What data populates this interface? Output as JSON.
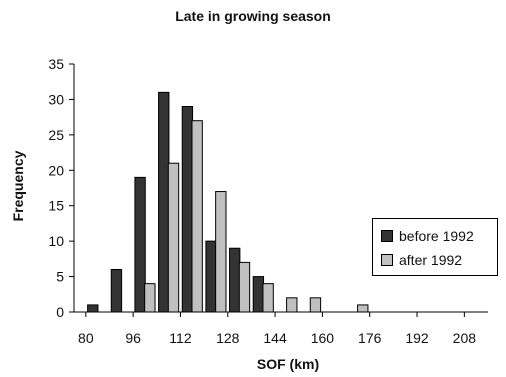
{
  "chart_data": {
    "type": "bar",
    "title": "Late in growing season",
    "xlabel": "SOF (km)",
    "ylabel": "Frequency",
    "xlim": [
      76,
      216
    ],
    "ylim": [
      0,
      35
    ],
    "xticks": [
      80,
      96,
      112,
      128,
      144,
      160,
      176,
      192,
      208
    ],
    "yticks": [
      0,
      5,
      10,
      15,
      20,
      25,
      30,
      35
    ],
    "bin_width": 8,
    "bins": [
      84,
      92,
      100,
      108,
      116,
      124,
      132,
      140,
      148,
      156,
      164,
      172,
      180,
      188,
      196,
      204,
      212
    ],
    "series": [
      {
        "name": "before 1992",
        "color": "#333333",
        "values": [
          1,
          6,
          19,
          31,
          29,
          10,
          9,
          5,
          0,
          0,
          0,
          0,
          0,
          0,
          0,
          0,
          0
        ]
      },
      {
        "name": "after 1992",
        "color": "#c0c0c0",
        "values": [
          0,
          0,
          4,
          21,
          27,
          17,
          7,
          4,
          2,
          2,
          0,
          1,
          0,
          0,
          0,
          0,
          0
        ]
      }
    ],
    "legend_position": "right",
    "grid": false
  }
}
